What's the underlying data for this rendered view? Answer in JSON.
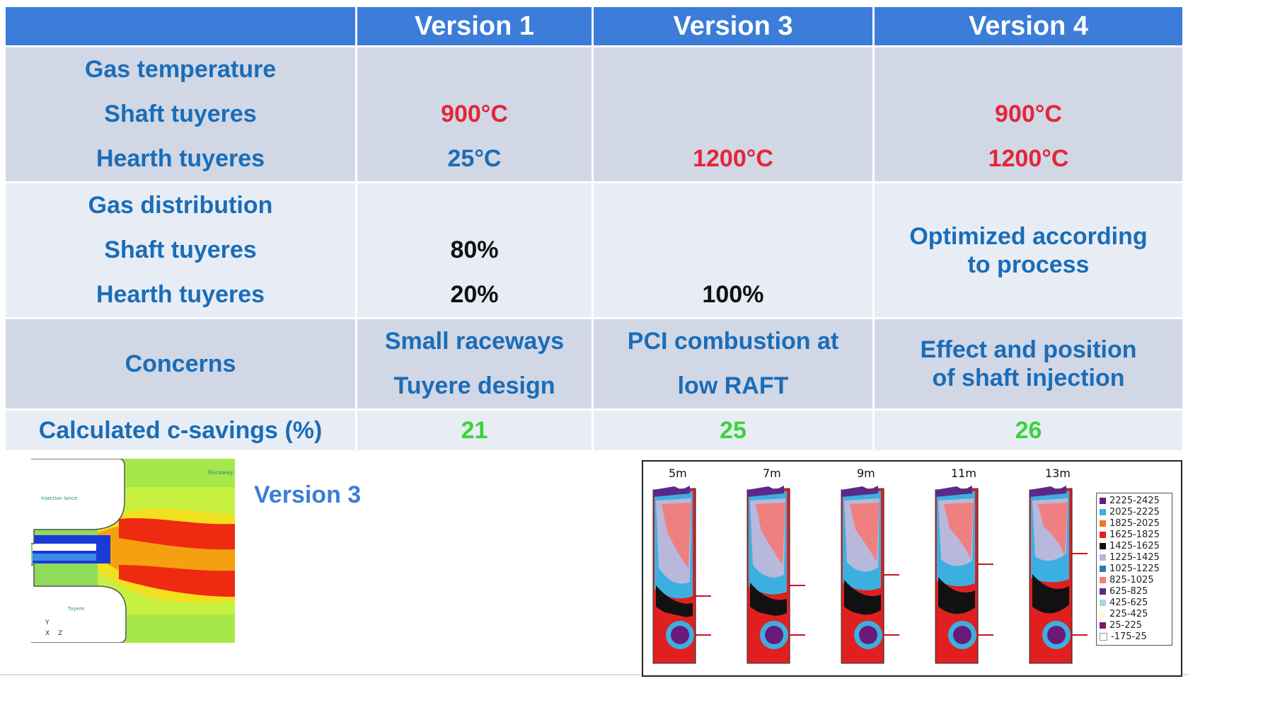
{
  "table": {
    "headers": [
      "",
      "Version 1",
      "Version 3",
      "Version 4"
    ],
    "gas_temperature": {
      "label_lines": [
        "Gas temperature",
        "Shaft tuyeres",
        "Hearth tuyeres"
      ],
      "v1": [
        "",
        "900°C",
        "25°C"
      ],
      "v3": [
        "",
        "",
        "1200°C"
      ],
      "v4": [
        "",
        "900°C",
        "1200°C"
      ]
    },
    "gas_distribution": {
      "label_lines": [
        "Gas distribution",
        "Shaft tuyeres",
        "Hearth tuyeres"
      ],
      "v1": [
        "",
        "80%",
        "20%"
      ],
      "v3": [
        "",
        "",
        "100%"
      ],
      "v4": "Optimized according to process"
    },
    "concerns": {
      "label": "Concerns",
      "v1": [
        "Small raceways",
        "Tuyere design"
      ],
      "v3": [
        "PCI combustion at",
        "low RAFT"
      ],
      "v4": "Effect and position of shaft injection"
    },
    "savings": {
      "label": "Calculated c-savings (%)",
      "v1": "21",
      "v3": "25",
      "v4": "26"
    }
  },
  "bottom": {
    "version_label": "Version 3",
    "sim_labels": [
      "Raceway",
      "Injection lance",
      "Tuyere",
      "Y",
      "X",
      "Z"
    ],
    "thermo_columns": [
      "5m",
      "7m",
      "9m",
      "11m",
      "13m"
    ],
    "legend": [
      {
        "range": "2225-2425",
        "color": "#6a1b7a"
      },
      {
        "range": "2025-2225",
        "color": "#3bb0e0"
      },
      {
        "range": "1825-2025",
        "color": "#f07820"
      },
      {
        "range": "1625-1825",
        "color": "#e02020"
      },
      {
        "range": "1425-1625",
        "color": "#111111"
      },
      {
        "range": "1225-1425",
        "color": "#b8b8dc"
      },
      {
        "range": "1025-1225",
        "color": "#2a7ab8"
      },
      {
        "range": "825-1025",
        "color": "#f08080"
      },
      {
        "range": "625-825",
        "color": "#5a2a8a"
      },
      {
        "range": "425-625",
        "color": "#a8d8e0"
      },
      {
        "range": "225-425",
        "color": "#fff8d8"
      },
      {
        "range": "25-225",
        "color": "#7a1a6a"
      },
      {
        "range": "-175-25",
        "color": "#ffffff"
      }
    ]
  },
  "colors": {
    "header_bg": "#3b7dd8",
    "label_blue": "#1a6db8",
    "temperature_red": "#e3263a",
    "savings_green": "#3ad43a"
  }
}
